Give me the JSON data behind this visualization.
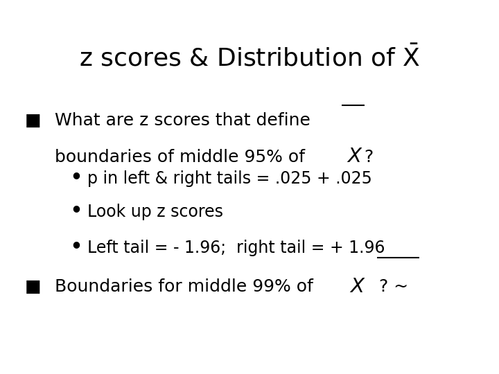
{
  "background_color": "#ffffff",
  "text_color": "#000000",
  "title_fontsize": 26,
  "body_fontsize": 18,
  "sub_bullet_fontsize": 17,
  "sub_bullets": [
    "p in left & right tails = .025 + .025",
    "Look up z scores",
    "Left tail = - 1.96;  right tail = + 1.96"
  ]
}
